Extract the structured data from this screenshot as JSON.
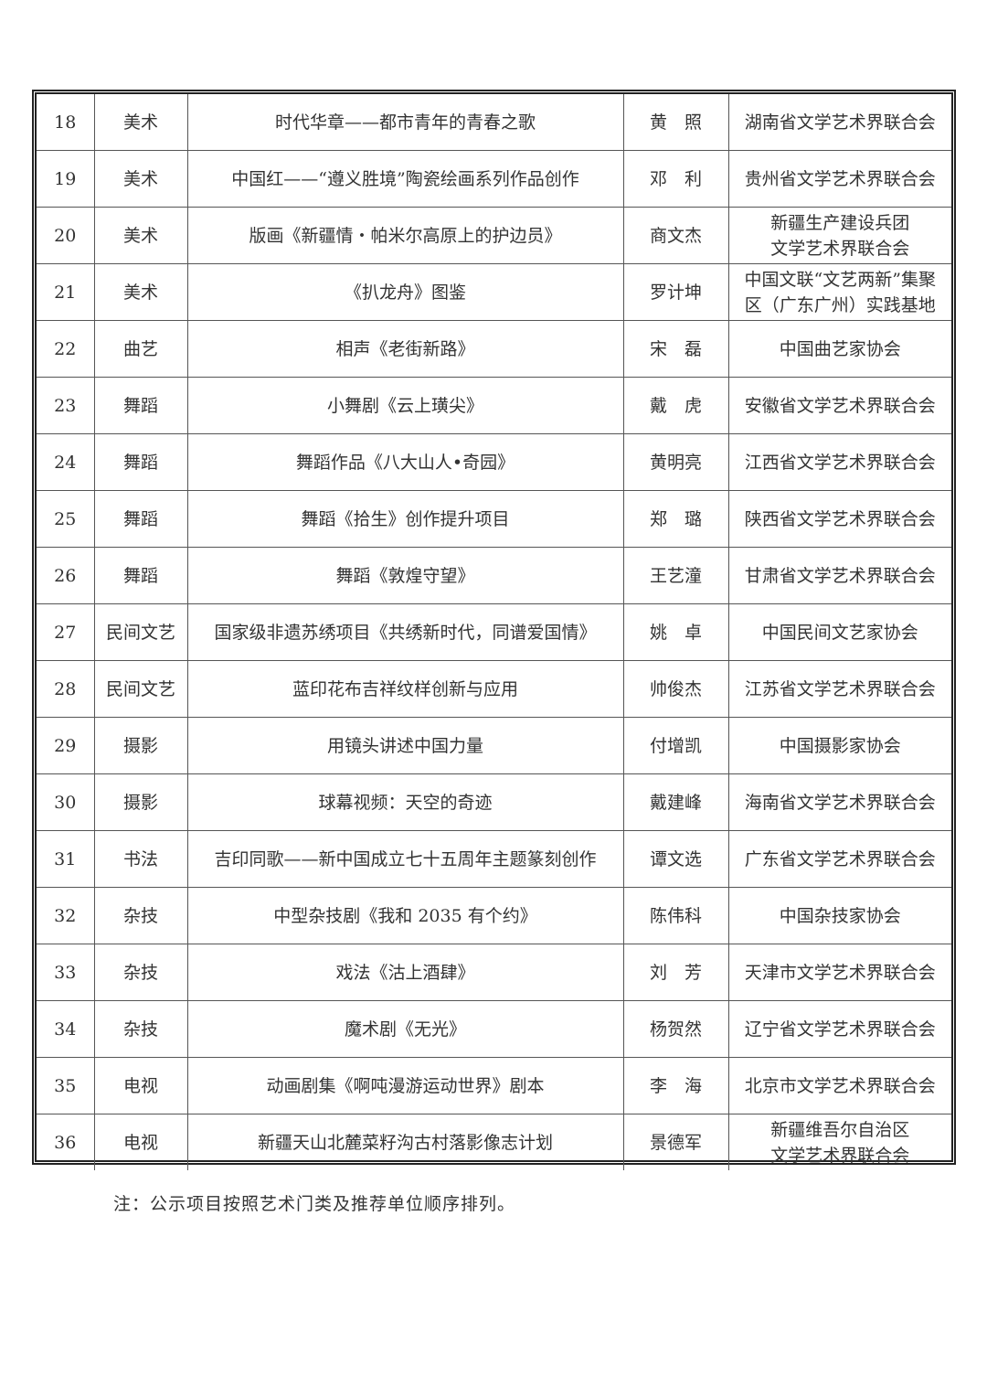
{
  "rows": [
    {
      "no": "18",
      "category": "美术",
      "project": "时代华章——都市青年的青春之歌",
      "person": "黄　照",
      "unit": "湖南省文学艺术界联合会"
    },
    {
      "no": "19",
      "category": "美术",
      "project": "中国红——“遵义胜境”陶瓷绘画系列作品创作",
      "person": "邓　利",
      "unit": "贵州省文学艺术界联合会"
    },
    {
      "no": "20",
      "category": "美术",
      "project": "版画《新疆情・帕米尔高原上的护边员》",
      "person": "商文杰",
      "unit": "新疆生产建设兵团\n文学艺术界联合会"
    },
    {
      "no": "21",
      "category": "美术",
      "project": "《扒龙舟》图鉴",
      "person": "罗计坤",
      "unit": "中国文联“文艺两新”集聚\n区（广东广州）实践基地"
    },
    {
      "no": "22",
      "category": "曲艺",
      "project": "相声《老街新路》",
      "person": "宋　磊",
      "unit": "中国曲艺家协会"
    },
    {
      "no": "23",
      "category": "舞蹈",
      "project": "小舞剧《云上璜尖》",
      "person": "戴　虎",
      "unit": "安徽省文学艺术界联合会"
    },
    {
      "no": "24",
      "category": "舞蹈",
      "project": "舞蹈作品《八大山人•奇园》",
      "person": "黄明亮",
      "unit": "江西省文学艺术界联合会"
    },
    {
      "no": "25",
      "category": "舞蹈",
      "project": "舞蹈《拾生》创作提升项目",
      "person": "郑　璐",
      "unit": "陕西省文学艺术界联合会"
    },
    {
      "no": "26",
      "category": "舞蹈",
      "project": "舞蹈《敦煌守望》",
      "person": "王艺潼",
      "unit": "甘肃省文学艺术界联合会"
    },
    {
      "no": "27",
      "category": "民间文艺",
      "project": "国家级非遗苏绣项目《共绣新时代，同谱爱国情》",
      "person": "姚　卓",
      "unit": "中国民间文艺家协会"
    },
    {
      "no": "28",
      "category": "民间文艺",
      "project": "蓝印花布吉祥纹样创新与应用",
      "person": "帅俊杰",
      "unit": "江苏省文学艺术界联合会"
    },
    {
      "no": "29",
      "category": "摄影",
      "project": "用镜头讲述中国力量",
      "person": "付增凯",
      "unit": "中国摄影家协会"
    },
    {
      "no": "30",
      "category": "摄影",
      "project": "球幕视频：天空的奇迹",
      "person": "戴建峰",
      "unit": "海南省文学艺术界联合会"
    },
    {
      "no": "31",
      "category": "书法",
      "project": "吉印同歌——新中国成立七十五周年主题篆刻创作",
      "person": "谭文选",
      "unit": "广东省文学艺术界联合会"
    },
    {
      "no": "32",
      "category": "杂技",
      "project": "中型杂技剧《我和 2035 有个约》",
      "person": "陈伟科",
      "unit": "中国杂技家协会"
    },
    {
      "no": "33",
      "category": "杂技",
      "project": "戏法《沽上酒肆》",
      "person": "刘　芳",
      "unit": "天津市文学艺术界联合会"
    },
    {
      "no": "34",
      "category": "杂技",
      "project": "魔术剧《无光》",
      "person": "杨贺然",
      "unit": "辽宁省文学艺术界联合会"
    },
    {
      "no": "35",
      "category": "电视",
      "project": "动画剧集《啊吨漫游运动世界》剧本",
      "person": "李　海",
      "unit": "北京市文学艺术界联合会"
    },
    {
      "no": "36",
      "category": "电视",
      "project": "新疆天山北麓菜籽沟古村落影像志计划",
      "person": "景德军",
      "unit": "新疆维吾尔自治区\n文学艺术界联合会"
    }
  ],
  "note": "注：公示项目按照艺术门类及推荐单位顺序排列。"
}
